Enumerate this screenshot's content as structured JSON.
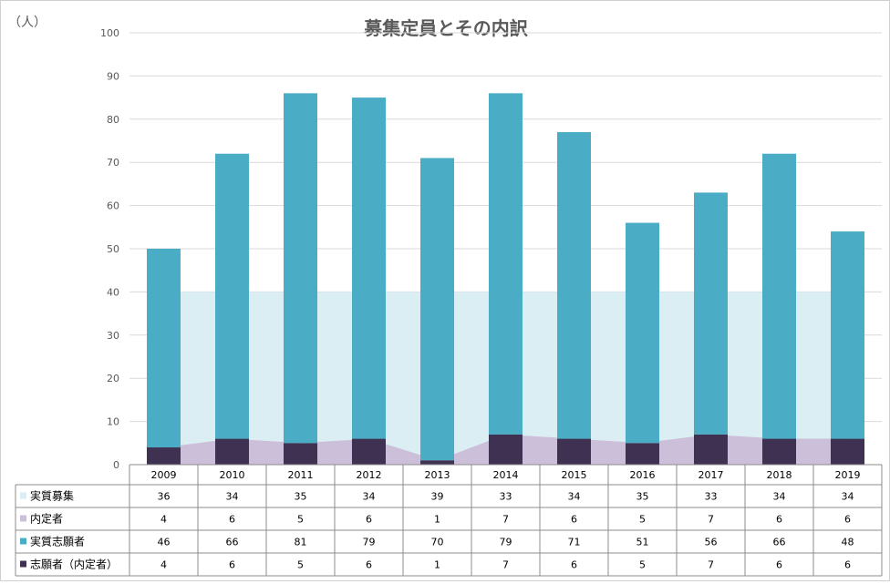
{
  "chart_data": {
    "type": "bar",
    "title": "募集定員とその内訳",
    "unit_label": "（人）",
    "categories": [
      "2009",
      "2010",
      "2011",
      "2012",
      "2013",
      "2014",
      "2015",
      "2016",
      "2017",
      "2018",
      "2019"
    ],
    "ylim": [
      0,
      100
    ],
    "yticks": [
      0,
      10,
      20,
      30,
      40,
      50,
      60,
      70,
      80,
      90,
      100
    ],
    "grid": true,
    "series": [
      {
        "name": "実質募集",
        "kind": "area",
        "color": "#daeef4",
        "values": [
          36,
          34,
          35,
          34,
          39,
          33,
          34,
          35,
          33,
          34,
          34
        ]
      },
      {
        "name": "内定者",
        "kind": "area",
        "color": "#ccbfd9",
        "values": [
          4,
          6,
          5,
          6,
          1,
          7,
          6,
          5,
          7,
          6,
          6
        ]
      },
      {
        "name": "実質志願者",
        "kind": "bar",
        "color": "#4bacc6",
        "values": [
          46,
          66,
          81,
          79,
          70,
          79,
          71,
          51,
          56,
          66,
          48
        ]
      },
      {
        "name": "志願者（内定者）",
        "kind": "bar",
        "color": "#3e3151",
        "values": [
          4,
          6,
          5,
          6,
          1,
          7,
          6,
          5,
          7,
          6,
          6
        ]
      }
    ]
  }
}
